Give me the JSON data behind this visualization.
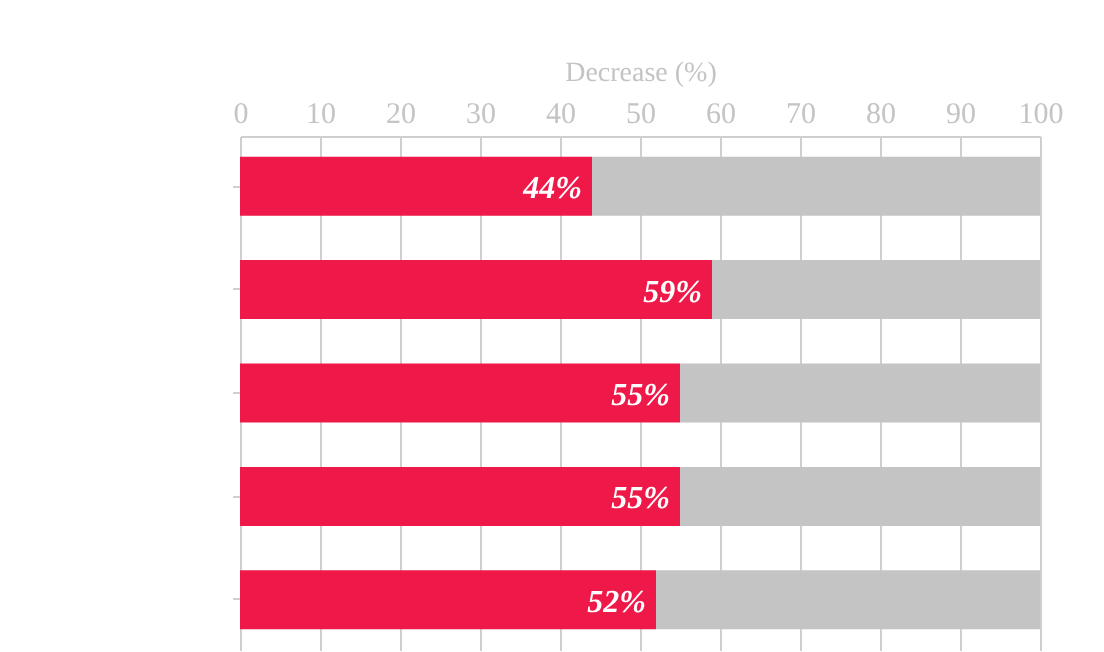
{
  "chart_data": {
    "type": "bar",
    "orientation": "horizontal",
    "stacked": true,
    "xlabel": "Decrease (%)",
    "categories": [
      null,
      null,
      null,
      null,
      null
    ],
    "series": [
      {
        "color": "#ee1849",
        "values": [
          44,
          59,
          55,
          55,
          52
        ],
        "value_labels": [
          "44%",
          "59%",
          "55%",
          "55%",
          "52%"
        ]
      },
      {
        "color": "#c4c4c4",
        "values": [
          56,
          41,
          45,
          45,
          48
        ]
      }
    ],
    "xlim": [
      0,
      100
    ],
    "xticks": [
      0,
      10,
      20,
      30,
      40,
      50,
      60,
      70,
      80,
      90,
      100
    ],
    "grid": "x",
    "tick_labels": "x",
    "legend": false
  }
}
